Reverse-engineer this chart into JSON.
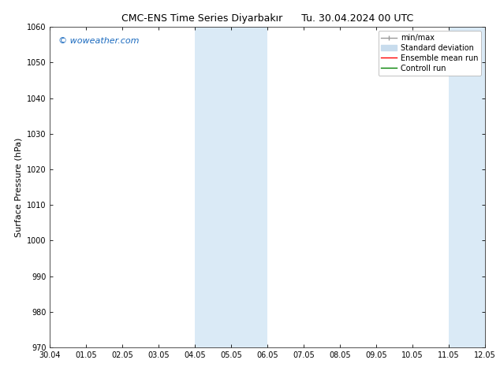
{
  "title": "CMC-ENS Time Series Diyarbakır      Tu. 30.04.2024 00 UTC",
  "ylabel": "Surface Pressure (hPa)",
  "ylim": [
    970,
    1060
  ],
  "yticks": [
    970,
    980,
    990,
    1000,
    1010,
    1020,
    1030,
    1040,
    1050,
    1060
  ],
  "xlim_start": 0,
  "xlim_end": 12,
  "xtick_labels": [
    "30.04",
    "01.05",
    "02.05",
    "03.05",
    "04.05",
    "05.05",
    "06.05",
    "07.05",
    "08.05",
    "09.05",
    "10.05",
    "11.05",
    "12.05"
  ],
  "shaded_regions": [
    {
      "xstart": 4,
      "xend": 6,
      "color": "#daeaf6"
    },
    {
      "xstart": 11,
      "xend": 12,
      "color": "#daeaf6"
    }
  ],
  "watermark_text": "© woweather.com",
  "watermark_color": "#1a6abf",
  "legend_entries": [
    {
      "label": "min/max",
      "color": "#999999",
      "lw": 1.0
    },
    {
      "label": "Standard deviation",
      "color": "#c8dced",
      "lw": 6
    },
    {
      "label": "Ensemble mean run",
      "color": "red",
      "lw": 1.0
    },
    {
      "label": "Controll run",
      "color": "green",
      "lw": 1.0
    }
  ],
  "bg_color": "#ffffff",
  "plot_bg_color": "#ffffff",
  "title_fontsize": 9,
  "tick_label_fontsize": 7,
  "ylabel_fontsize": 8,
  "watermark_fontsize": 8,
  "legend_fontsize": 7
}
